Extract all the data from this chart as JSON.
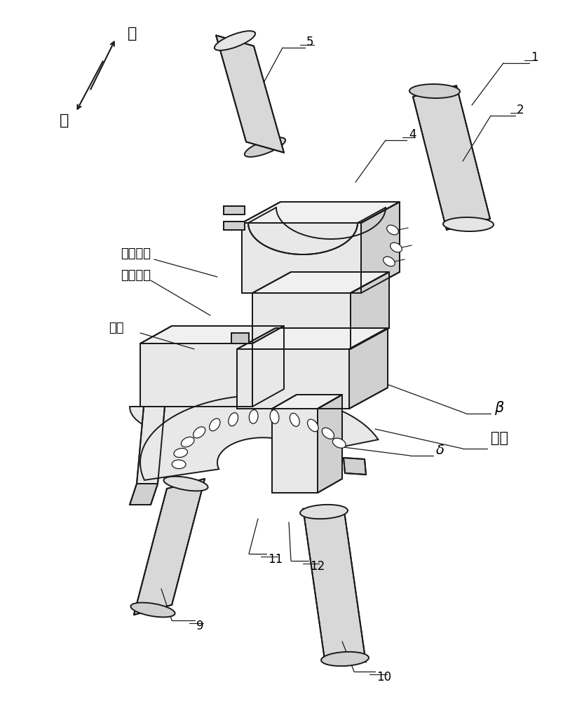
{
  "bg_color": "#ffffff",
  "line_color": "#1a1a1a",
  "lw_main": 1.4,
  "lw_thin": 0.9,
  "fig_width": 8.13,
  "fig_height": 10.0,
  "dpi": 100,
  "labels": {
    "shang": "上",
    "xia": "下",
    "di_san_ce_mian": "第三侧面",
    "di_yi_ce_mian": "第一侧面",
    "kai_feng": "开缝",
    "beta": "β",
    "delta": "δ",
    "di_mian": "底面",
    "n1": "1",
    "n2": "2",
    "n4": "4",
    "n5": "5",
    "n9": "9",
    "n10": "10",
    "n11": "11",
    "n12": "12"
  }
}
